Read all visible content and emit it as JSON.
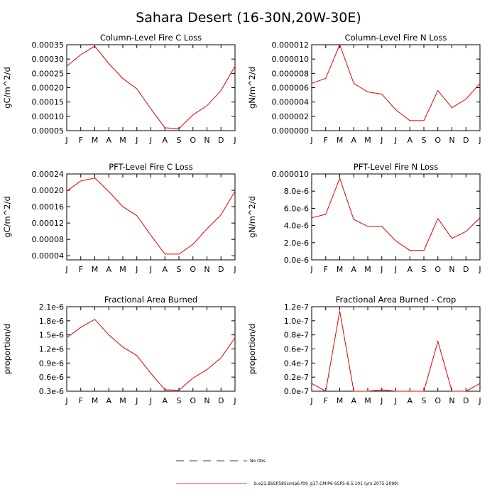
{
  "title": "Sahara Desert (16-30N,20W-30E)",
  "legend": {
    "obs_label": "No Obs",
    "model_label": "b.e21.BSSP585cmip6.f09_g17.CMIP6-SSP5-8.5.101 (yrs 2075-2099)",
    "obs_color": "#000000",
    "model_color": "#e00000"
  },
  "chart_data": [
    {
      "type": "line",
      "title": "Column-Level Fire C Loss",
      "ylabel": "gC/m^2/d",
      "x": [
        "J",
        "F",
        "M",
        "A",
        "M",
        "J",
        "J",
        "A",
        "S",
        "O",
        "N",
        "D",
        "J"
      ],
      "ylim": [
        5e-05,
        0.00035
      ],
      "yticks": [
        5e-05,
        0.0001,
        0.00015,
        0.0002,
        0.00025,
        0.0003,
        0.00035
      ],
      "yticklabels": [
        "0.00005",
        "0.00010",
        "0.00015",
        "0.00020",
        "0.00025",
        "0.00030",
        "0.00035"
      ],
      "series": [
        {
          "values": [
            0.000275,
            0.000315,
            0.000345,
            0.000284,
            0.000232,
            0.000196,
            0.000126,
            6e-05,
            5.7e-05,
            0.000105,
            0.000137,
            0.00019,
            0.000275
          ]
        }
      ]
    },
    {
      "type": "line",
      "title": "Column-Level Fire N Loss",
      "ylabel": "gN/m^2/d",
      "x": [
        "J",
        "F",
        "M",
        "A",
        "M",
        "J",
        "J",
        "A",
        "S",
        "O",
        "N",
        "D",
        "J"
      ],
      "ylim": [
        0,
        1.2e-05
      ],
      "yticks": [
        0,
        2e-06,
        4e-06,
        6e-06,
        8e-06,
        1e-05,
        1.2e-05
      ],
      "yticklabels": [
        "0.000000",
        "0.000002",
        "0.000004",
        "0.000006",
        "0.000008",
        "0.000010",
        "0.000012"
      ],
      "series": [
        {
          "values": [
            6.6e-06,
            7.3e-06,
            1.2e-05,
            6.6e-06,
            5.4e-06,
            5.1e-06,
            2.9e-06,
            1.4e-06,
            1.4e-06,
            5.6e-06,
            3.2e-06,
            4.4e-06,
            6.6e-06
          ]
        }
      ]
    },
    {
      "type": "line",
      "title": "PFT-Level Fire C Loss",
      "ylabel": "gC/m^2/d",
      "x": [
        "J",
        "F",
        "M",
        "A",
        "M",
        "J",
        "J",
        "A",
        "S",
        "O",
        "N",
        "D",
        "J"
      ],
      "ylim": [
        3e-05,
        0.00024
      ],
      "yticks": [
        4e-05,
        8e-05,
        0.00012,
        0.00016,
        0.0002,
        0.00024
      ],
      "yticklabels": [
        "0.00004",
        "0.00008",
        "0.00012",
        "0.00016",
        "0.00020",
        "0.00024"
      ],
      "series": [
        {
          "values": [
            0.000198,
            0.000223,
            0.00023,
            0.000197,
            0.00016,
            0.000138,
            9e-05,
            4.4e-05,
            4.4e-05,
            6.8e-05,
            0.000106,
            0.00014,
            0.000198
          ]
        }
      ]
    },
    {
      "type": "line",
      "title": "PFT-Level Fire N Loss",
      "ylabel": "gN/m^2/d",
      "x": [
        "J",
        "F",
        "M",
        "A",
        "M",
        "J",
        "J",
        "A",
        "S",
        "O",
        "N",
        "D",
        "J"
      ],
      "ylim": [
        0,
        1e-05
      ],
      "yticks": [
        0,
        2e-06,
        4e-06,
        6e-06,
        8e-06,
        1e-05
      ],
      "yticklabels": [
        "0.0e-6",
        "2.0e-6",
        "4.0e-6",
        "6.0e-6",
        "8.0e-6",
        "0.000010"
      ],
      "series": [
        {
          "values": [
            4.9e-06,
            5.3e-06,
            9.5e-06,
            4.7e-06,
            3.9e-06,
            3.9e-06,
            2.2e-06,
            1.1e-06,
            1.1e-06,
            4.8e-06,
            2.5e-06,
            3.3e-06,
            4.9e-06
          ]
        }
      ]
    },
    {
      "type": "line",
      "title": "Fractional Area Burned",
      "ylabel": "proportion/d",
      "x": [
        "J",
        "F",
        "M",
        "A",
        "M",
        "J",
        "J",
        "A",
        "S",
        "O",
        "N",
        "D",
        "J"
      ],
      "ylim": [
        3e-07,
        2.1e-06
      ],
      "yticks": [
        3e-07,
        6e-07,
        9e-07,
        1.2e-06,
        1.5e-06,
        1.8e-06,
        2.1e-06
      ],
      "yticklabels": [
        "0.3e-6",
        "0.6e-6",
        "0.9e-6",
        "1.2e-6",
        "1.5e-6",
        "1.8e-6",
        "2.1e-6"
      ],
      "series": [
        {
          "values": [
            1.44e-06,
            1.66e-06,
            1.83e-06,
            1.5e-06,
            1.24e-06,
            1.06e-06,
            6.8e-07,
            3.3e-07,
            3.2e-07,
            5.8e-07,
            7.6e-07,
            1.01e-06,
            1.44e-06
          ]
        }
      ]
    },
    {
      "type": "line",
      "title": "Fractional Area Burned - Crop",
      "ylabel": "proportion/d",
      "x": [
        "J",
        "F",
        "M",
        "A",
        "M",
        "J",
        "J",
        "A",
        "S",
        "O",
        "N",
        "D",
        "J"
      ],
      "ylim": [
        0,
        1.2e-07
      ],
      "yticks": [
        0,
        2e-08,
        4e-08,
        6e-08,
        8e-08,
        1e-07,
        1.2e-07
      ],
      "yticklabels": [
        "0.0e-7",
        "0.2e-7",
        "0.4e-7",
        "0.6e-7",
        "0.8e-7",
        "1.0e-7",
        "1.2e-7"
      ],
      "series": [
        {
          "values": [
            1.1e-08,
            0,
            1.14e-07,
            0,
            0,
            2e-09,
            0,
            0,
            0,
            7.1e-08,
            0,
            0,
            1.1e-08
          ]
        }
      ]
    }
  ]
}
